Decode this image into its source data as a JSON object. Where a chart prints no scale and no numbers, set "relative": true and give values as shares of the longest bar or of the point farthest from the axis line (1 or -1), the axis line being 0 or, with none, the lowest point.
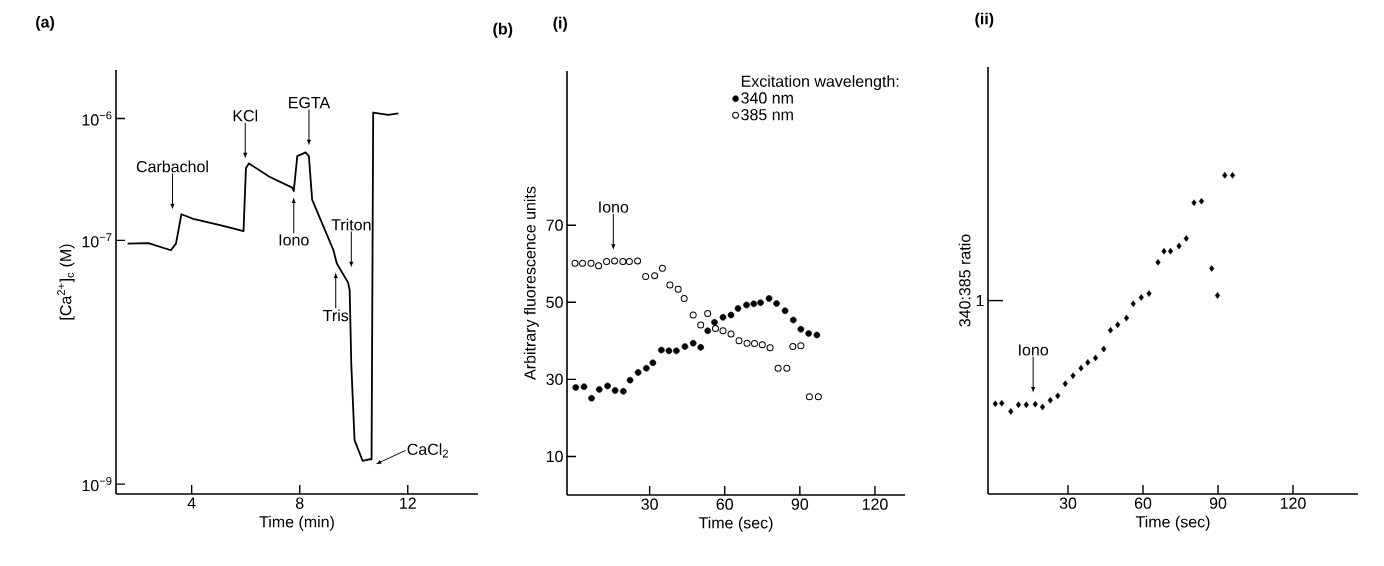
{
  "chart_data": [
    {
      "type": "line",
      "title": "(a)",
      "xlabel": "Time (min)",
      "ylabel": "[Ca$^{2+}$]$_{c}$ (M)",
      "log": "y",
      "x": [
        1.63,
        2.4,
        3.23,
        3.42,
        3.62,
        4.06,
        5.09,
        5.92,
        6.01,
        6.12,
        6.88,
        7.72,
        7.78,
        7.91,
        8.22,
        8.34,
        8.46,
        8.76,
        9.25,
        9.37,
        9.79,
        9.85,
        9.91,
        10.03,
        10.33,
        10.57,
        10.66,
        10.72,
        11.28,
        11.65
      ],
      "series": [
        {
          "color": "#000000",
          "values": [
            9.4e-08,
            9.5e-08,
            8.3e-08,
            9.4e-08,
            1.64e-07,
            1.5e-07,
            1.33e-07,
            1.19e-07,
            3.92e-07,
            4.28e-07,
            3.33e-07,
            2.71e-07,
            2.54e-07,
            4.92e-07,
            5.27e-07,
            4.92e-07,
            2.16e-07,
            1.5e-07,
            8.3e-08,
            6.5e-08,
            4.5e-08,
            3.9e-08,
            9.5e-09,
            2.3e-09,
            1.55e-09,
            1.6e-09,
            1.6e-09,
            1.12e-06,
            1.07e-06,
            1.1e-06
          ]
        }
      ],
      "xlim": [
        1.2,
        14.6
      ],
      "ylim": [
        8.3e-10,
        2.5e-06
      ],
      "xticks": [
        4,
        8,
        12
      ],
      "yticks": [
        {
          "value": 1e-09,
          "label": "10$^{−9}$"
        },
        {
          "value": 1e-07,
          "label": "10$^{−7}$"
        },
        {
          "value": 1e-06,
          "label": "10$^{−6}$"
        }
      ],
      "annotations": [
        "Carbachol",
        "KCl",
        "EGTA",
        "Iono",
        "Triton",
        "Tris",
        "CaCl$_{2}$"
      ]
    },
    {
      "type": "scatter",
      "title": "(i)",
      "xlabel": "Time (sec)",
      "ylabel": "Arbitrary fluorescence units",
      "legend_title": "Excitation wavelength:",
      "legend": "top right",
      "marker": "circle",
      "series": [
        {
          "name": "340 nm",
          "color": "#000000",
          "x": [
            0.5,
            3.8,
            6.8,
            9.9,
            13.2,
            16.2,
            19.5,
            22.2,
            25.4,
            28.7,
            31.3,
            34.7,
            37.7,
            40.7,
            44.1,
            47.4,
            50.4,
            53.2,
            55.9,
            59.3,
            62.5,
            65.3,
            68.7,
            71.6,
            74.3,
            77.7,
            80.7,
            84.1,
            87.4,
            90.4,
            93.5,
            96.8
          ],
          "values": [
            27.9,
            28.1,
            25.1,
            27.4,
            28.3,
            27.1,
            26.9,
            29.8,
            31.8,
            32.9,
            34.3,
            37.6,
            37.4,
            37.4,
            38.5,
            39.4,
            38.3,
            42.6,
            44.8,
            46.1,
            46.7,
            48.4,
            49.3,
            49.6,
            49.9,
            51.0,
            49.7,
            47.8,
            45.4,
            43.0,
            41.9,
            41.5
          ]
        },
        {
          "name": "385 nm",
          "color": "#000000",
          "x": [
            0.2,
            3.2,
            6.6,
            9.6,
            12.8,
            16.0,
            19.3,
            21.9,
            25.2,
            28.4,
            32.0,
            35.1,
            38.1,
            41.4,
            43.8,
            47.4,
            50.4,
            53.2,
            56.3,
            59.3,
            62.5,
            65.7,
            68.9,
            71.9,
            75.0,
            78.1,
            81.3,
            84.8,
            87.2,
            90.4,
            93.8,
            97.4
          ],
          "values": [
            60.1,
            60.1,
            60.1,
            59.5,
            60.6,
            60.7,
            60.6,
            60.6,
            60.7,
            56.7,
            56.9,
            58.8,
            54.5,
            53.4,
            51.0,
            46.7,
            44.1,
            47.1,
            43.2,
            42.6,
            41.8,
            40.0,
            39.4,
            39.3,
            39.0,
            38.2,
            32.9,
            32.9,
            38.5,
            38.7,
            25.5,
            25.5
          ]
        }
      ],
      "xlim": [
        -3,
        132
      ],
      "ylim": [
        0,
        110
      ],
      "xticks": [
        30,
        60,
        90,
        120
      ],
      "yticks": [
        10,
        30,
        50,
        70
      ],
      "annotations": [
        "(b)",
        "Iono"
      ]
    },
    {
      "type": "scatter",
      "title": "(ii)",
      "xlabel": "Time (sec)",
      "ylabel": "340:385 ratio",
      "relative": true,
      "marker": "diamond",
      "series": [
        {
          "color": "#000000",
          "x": [
            0.9,
            3.5,
            7.1,
            10.2,
            13.3,
            16.9,
            19.8,
            22.9,
            25.9,
            28.9,
            32.0,
            35.2,
            37.9,
            41.0,
            44.3,
            47.0,
            49.9,
            53.4,
            56.1,
            59.3,
            62.4,
            66.0,
            68.4,
            71.0,
            74.4,
            77.3,
            80.4,
            83.4,
            87.5,
            89.8,
            92.7,
            95.8
          ],
          "values": [
            0.283,
            0.285,
            0.259,
            0.28,
            0.28,
            0.282,
            0.273,
            0.294,
            0.308,
            0.346,
            0.371,
            0.395,
            0.413,
            0.427,
            0.455,
            0.514,
            0.531,
            0.552,
            0.597,
            0.617,
            0.629,
            0.727,
            0.762,
            0.762,
            0.778,
            0.802,
            0.914,
            0.919,
            0.708,
            0.623,
            1.0,
            1.0
          ]
        }
      ],
      "xlim": [
        -2,
        146
      ],
      "xticks": [
        30,
        60,
        90,
        120
      ],
      "annotations": [
        "Iono",
        "1"
      ]
    }
  ]
}
